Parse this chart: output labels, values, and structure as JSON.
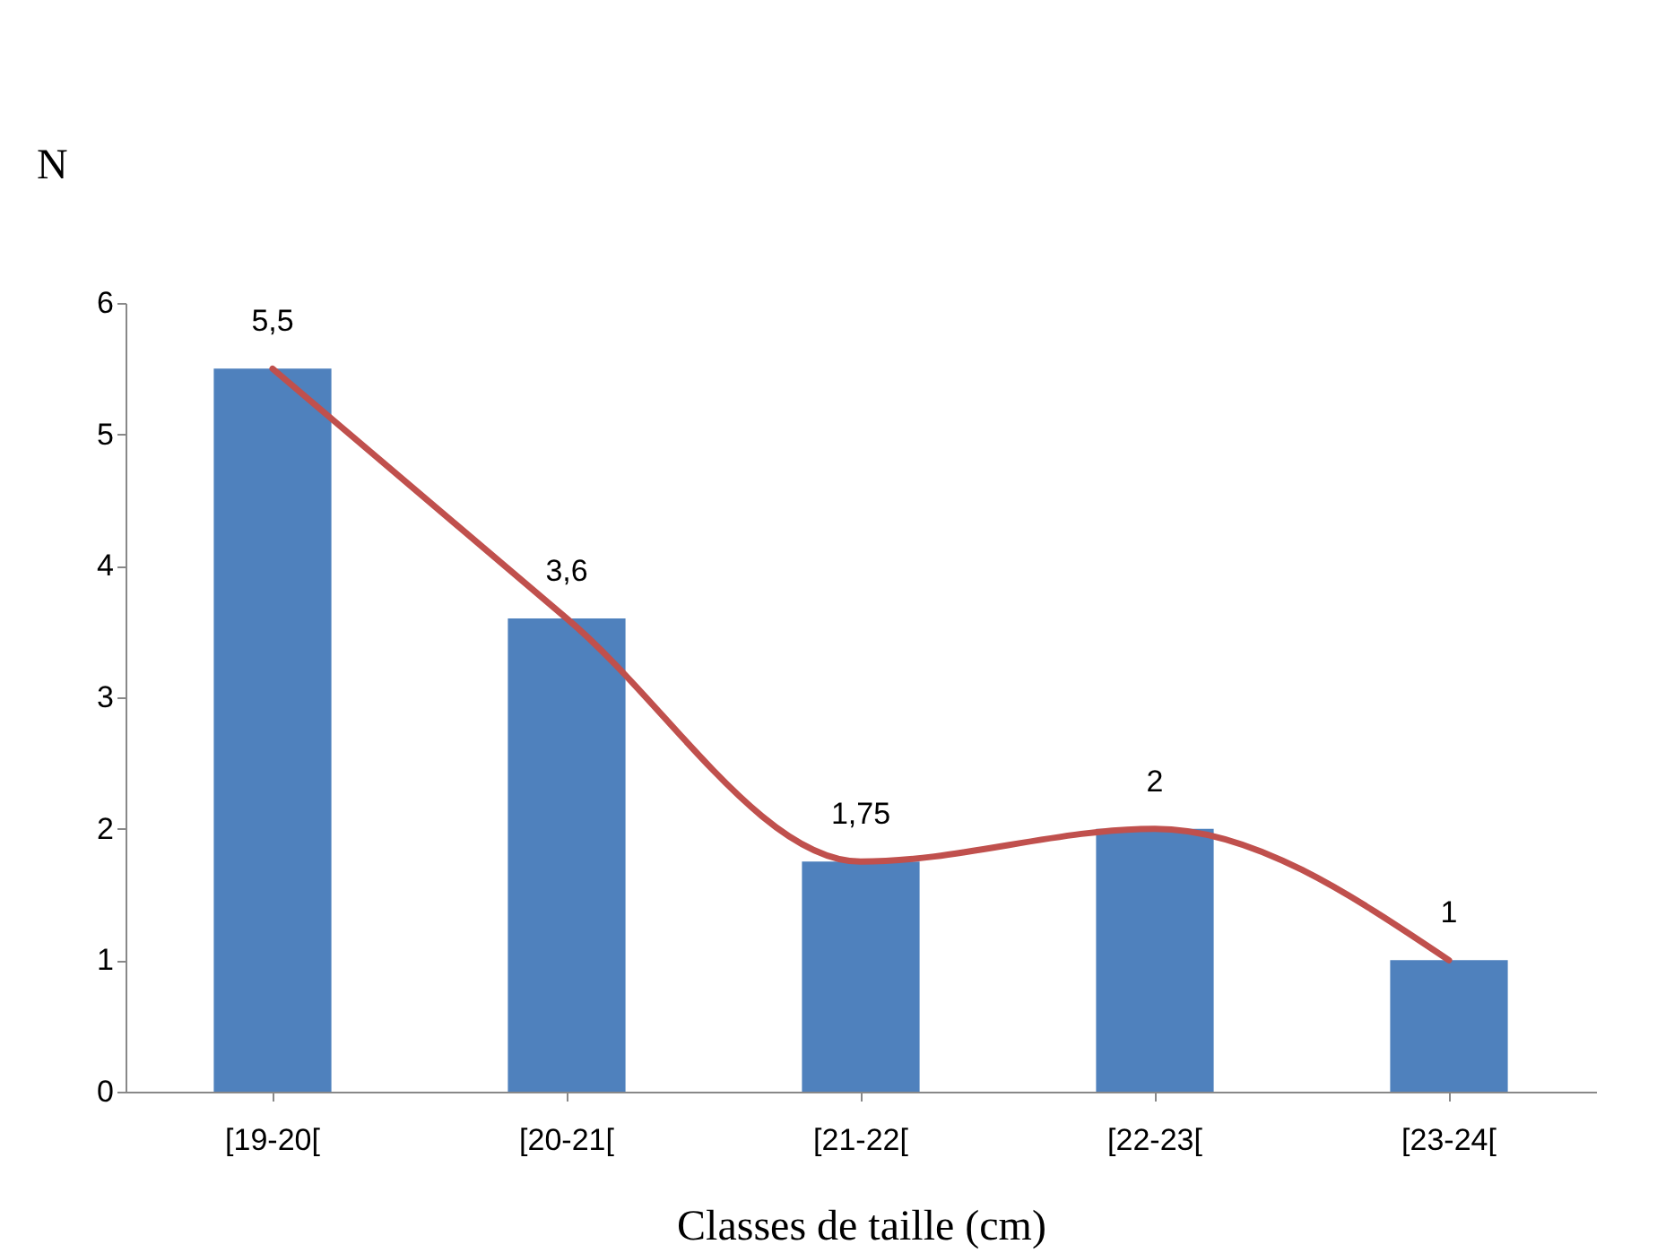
{
  "chart_data": {
    "type": "bar",
    "xlabel": "Classes de taille (cm)",
    "ylabel": "N",
    "categories": [
      "[19-20[",
      "[20-21[",
      "[21-22[",
      "[22-23[",
      "[23-24["
    ],
    "series": [
      {
        "color": "#4f81bd",
        "values": [
          5.5,
          3.6,
          1.75,
          2,
          1
        ],
        "value_labels": [
          "5,5",
          "3,6",
          "1,75",
          "2",
          "1"
        ]
      },
      {
        "type": "line",
        "color": "#c0504d",
        "values": [
          5.5,
          3.6,
          1.75,
          2,
          1
        ]
      }
    ],
    "ylim": [
      0,
      6
    ],
    "yticks": [
      0,
      1,
      2,
      3,
      4,
      5,
      6
    ],
    "grid": false
  }
}
